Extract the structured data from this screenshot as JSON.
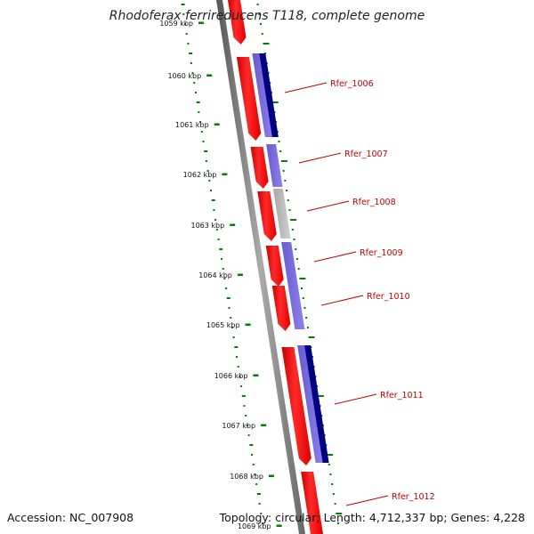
{
  "title": "Rhodoferax ferrireducens T118, complete genome",
  "accession_label": "Accession: NC_007908",
  "topology_label": "Topology: circular; Length: 4,712,337 bp; Genes: 4,228",
  "colors": {
    "forward_cds": "#ff0000",
    "reverse_cds": "#0000cc",
    "blast_hit": "#7b68ee",
    "blast_gray": "#b8b8b8",
    "backbone": "#808080",
    "gc_ticks": "#008000",
    "label": "#c00000"
  },
  "ruler": [
    {
      "label": "1059 kbp"
    },
    {
      "label": "1060 kbp"
    },
    {
      "label": "1061 kbp"
    },
    {
      "label": "1062 kbp"
    },
    {
      "label": "1063 kbp"
    },
    {
      "label": "1064 kbp"
    },
    {
      "label": "1065 kbp"
    },
    {
      "label": "1066 kbp"
    },
    {
      "label": "1067 kbp"
    },
    {
      "label": "1068 kbp"
    },
    {
      "label": "1069 kbp"
    }
  ],
  "genes": [
    {
      "label": "Rfer_1006"
    },
    {
      "label": "Rfer_1007"
    },
    {
      "label": "Rfer_1008"
    },
    {
      "label": "Rfer_1009"
    },
    {
      "label": "Rfer_1010"
    },
    {
      "label": "Rfer_1011"
    },
    {
      "label": "Rfer_1012"
    }
  ]
}
